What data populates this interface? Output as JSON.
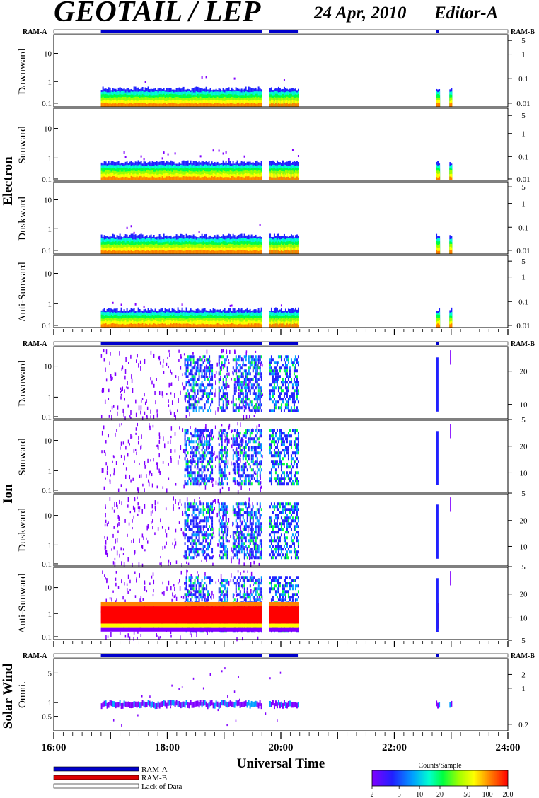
{
  "header": {
    "title": "GEOTAIL / LEP",
    "date": "24 Apr, 2010",
    "editor": "Editor-A"
  },
  "groups": [
    {
      "key": "electron",
      "label": "Electron",
      "ram_left": "RAM-A",
      "ram_right": "RAM-B"
    },
    {
      "key": "ion",
      "label": "Ion",
      "ram_left": "RAM-A",
      "ram_right": "RAM-B"
    },
    {
      "key": "sw",
      "label": "Solar Wind",
      "ram_left": "RAM-A",
      "ram_right": "RAM-B"
    }
  ],
  "legend": {
    "items": [
      {
        "label": "RAM-A",
        "color": "#0000cc"
      },
      {
        "label": "RAM-B",
        "color": "#dd0000"
      },
      {
        "label": "Lack of Data",
        "color": "#ffffff"
      }
    ]
  },
  "colorbar": {
    "title": "Counts/Sample",
    "ticks": [
      "2",
      "5",
      "10",
      "20",
      "50",
      "100",
      "200"
    ]
  },
  "colors": {
    "ram_a": "#0000cc",
    "ram_b": "#dd0000",
    "spectrum": [
      "#8000ff",
      "#2020ff",
      "#00a0ff",
      "#00ffd0",
      "#00ff40",
      "#a0ff00",
      "#ffff00",
      "#ff8000",
      "#ff0000"
    ]
  },
  "chart_data": {
    "type": "heatmap",
    "xlabel": "Universal Time",
    "x_ticks": [
      "16:00",
      "18:00",
      "20:00",
      "22:00",
      "24:00"
    ],
    "xlim": [
      16,
      24
    ],
    "ram_a_intervals": [
      [
        16.83,
        19.67
      ],
      [
        19.8,
        20.3
      ],
      [
        22.73,
        22.78
      ]
    ],
    "ram_b_intervals": [],
    "data_intervals": [
      [
        16.83,
        19.67
      ],
      [
        19.8,
        20.32
      ],
      [
        22.73,
        22.78
      ],
      [
        22.97,
        23.0
      ]
    ],
    "panels": [
      {
        "group": "electron",
        "label": "Dawnward",
        "left_ticks": [
          {
            "label": "10",
            "f": 0.74
          },
          {
            "label": "1",
            "f": 0.35
          },
          {
            "label": "0.1",
            "f": 0.05
          }
        ],
        "right_ticks": [
          {
            "label": "5",
            "f": 0.92
          },
          {
            "label": "1",
            "f": 0.73
          },
          {
            "label": "0.1",
            "f": 0.39
          },
          {
            "label": "0.01",
            "f": 0.05
          }
        ]
      },
      {
        "group": "electron",
        "label": "Sunward",
        "left_ticks": [
          {
            "label": "10",
            "f": 0.72
          },
          {
            "label": "1",
            "f": 0.31
          },
          {
            "label": "0.1",
            "f": 0.02
          }
        ],
        "right_ticks": [
          {
            "label": "5",
            "f": 0.9
          },
          {
            "label": "1",
            "f": 0.65
          },
          {
            "label": "0.1",
            "f": 0.33
          },
          {
            "label": "0.01",
            "f": 0.02
          }
        ]
      },
      {
        "group": "electron",
        "label": "Duskward",
        "left_ticks": [
          {
            "label": "10",
            "f": 0.75
          },
          {
            "label": "1",
            "f": 0.35
          },
          {
            "label": "0.1",
            "f": 0.05
          }
        ],
        "right_ticks": [
          {
            "label": "5",
            "f": 0.93
          },
          {
            "label": "1",
            "f": 0.7
          },
          {
            "label": "0.1",
            "f": 0.37
          },
          {
            "label": "0.01",
            "f": 0.05
          }
        ]
      },
      {
        "group": "electron",
        "label": "Anti-Sunward",
        "left_ticks": [
          {
            "label": "10",
            "f": 0.75
          },
          {
            "label": "1",
            "f": 0.33
          },
          {
            "label": "0.1",
            "f": 0.03
          }
        ],
        "right_ticks": [
          {
            "label": "5",
            "f": 0.92
          },
          {
            "label": "1",
            "f": 0.7
          },
          {
            "label": "0.1",
            "f": 0.36
          },
          {
            "label": "0.01",
            "f": 0.03
          }
        ]
      },
      {
        "group": "ion",
        "label": "Dawnward",
        "left_ticks": [
          {
            "label": "10",
            "f": 0.73
          },
          {
            "label": "1",
            "f": 0.3
          },
          {
            "label": "0.1",
            "f": 0.03
          }
        ],
        "right_ticks": [
          {
            "label": "20",
            "f": 0.66
          },
          {
            "label": "10",
            "f": 0.2
          },
          {
            "label": "5",
            "f": -0.01
          }
        ]
      },
      {
        "group": "ion",
        "label": "Sunward",
        "left_ticks": [
          {
            "label": "10",
            "f": 0.72
          },
          {
            "label": "1",
            "f": 0.3
          },
          {
            "label": "0.1",
            "f": 0.03
          }
        ],
        "right_ticks": [
          {
            "label": "20",
            "f": 0.64
          },
          {
            "label": "10",
            "f": 0.27
          },
          {
            "label": "5",
            "f": -0.01
          }
        ]
      },
      {
        "group": "ion",
        "label": "Duskward",
        "left_ticks": [
          {
            "label": "10",
            "f": 0.7
          },
          {
            "label": "1",
            "f": 0.29
          },
          {
            "label": "0.1",
            "f": 0.03
          }
        ],
        "right_ticks": [
          {
            "label": "20",
            "f": 0.63
          },
          {
            "label": "10",
            "f": 0.27
          },
          {
            "label": "5",
            "f": -0.01
          }
        ]
      },
      {
        "group": "ion",
        "label": "Anti-Sunward",
        "left_ticks": [
          {
            "label": "10",
            "f": 0.72
          },
          {
            "label": "1",
            "f": 0.36
          },
          {
            "label": "0.1",
            "f": 0.04
          }
        ],
        "right_ticks": [
          {
            "label": "20",
            "f": 0.63
          },
          {
            "label": "10",
            "f": 0.3
          },
          {
            "label": "5",
            "f": -0.01
          }
        ]
      },
      {
        "group": "sw",
        "label": "Omni.",
        "left_ticks": [
          {
            "label": "5",
            "f": 0.8
          },
          {
            "label": "1",
            "f": 0.39
          },
          {
            "label": "0.5",
            "f": 0.2
          }
        ],
        "right_ticks": [
          {
            "label": "2",
            "f": 0.78
          },
          {
            "label": "1",
            "f": 0.59
          },
          {
            "label": "0.2",
            "f": 0.09
          }
        ]
      }
    ]
  }
}
